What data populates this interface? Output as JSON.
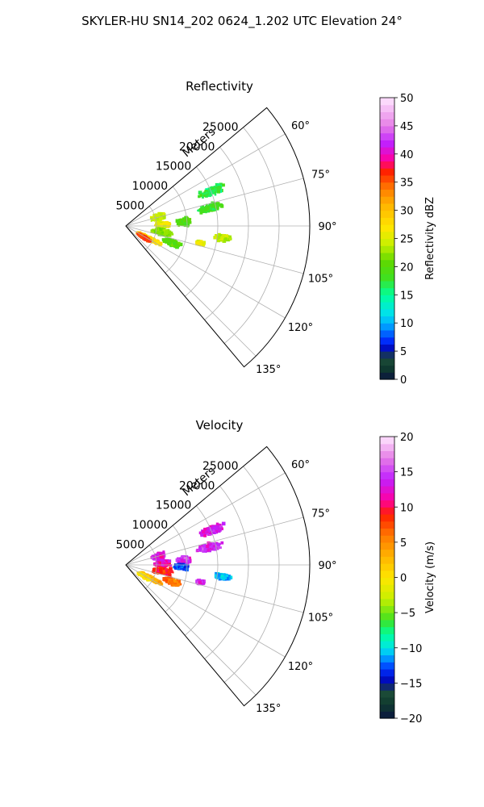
{
  "figure_title": "SKYLER-HU  SN14_202  0624_1.202 UTC Elevation 24°",
  "chart_data": [
    {
      "type": "heatmap",
      "projection": "polar-sector",
      "title": "Reflectivity",
      "range_label": "Meters",
      "range_ticks": [
        5000,
        10000,
        15000,
        20000,
        25000
      ],
      "range_tick_labels": [
        "5000",
        "10000",
        "15000",
        "20000",
        "25000"
      ],
      "range_lim": [
        0,
        30000
      ],
      "azimuth_lim_deg": [
        50,
        140
      ],
      "azimuth_ticks_deg": [
        60,
        75,
        90,
        105,
        120,
        135
      ],
      "azimuth_tick_labels": [
        "60°",
        "75°",
        "90°",
        "105°",
        "120°",
        "135°"
      ],
      "grid": true,
      "colorbar": {
        "label": "Reflectivity dBZ",
        "range": [
          0,
          50
        ],
        "ticks": [
          0,
          5,
          10,
          15,
          20,
          25,
          30,
          35,
          40,
          45,
          50
        ],
        "tick_labels": [
          "0",
          "5",
          "10",
          "15",
          "20",
          "25",
          "30",
          "35",
          "40",
          "45",
          "50"
        ],
        "stops": [
          {
            "v": 0,
            "c": "#0a1440"
          },
          {
            "v": 2,
            "c": "#0f3a2e"
          },
          {
            "v": 4,
            "c": "#1f4f3a"
          },
          {
            "v": 5,
            "c": "#0000a8"
          },
          {
            "v": 7,
            "c": "#0030ff"
          },
          {
            "v": 10,
            "c": "#00b4ff"
          },
          {
            "v": 12,
            "c": "#00e6e6"
          },
          {
            "v": 15,
            "c": "#00ff9a"
          },
          {
            "v": 18,
            "c": "#40e020"
          },
          {
            "v": 21,
            "c": "#60d800"
          },
          {
            "v": 24,
            "c": "#c8f000"
          },
          {
            "v": 27,
            "c": "#ffe600"
          },
          {
            "v": 31,
            "c": "#ffb400"
          },
          {
            "v": 34,
            "c": "#ff7800"
          },
          {
            "v": 37,
            "c": "#ff1e00"
          },
          {
            "v": 39,
            "c": "#ff00a0"
          },
          {
            "v": 42,
            "c": "#c020ff"
          },
          {
            "v": 45,
            "c": "#e67ee6"
          },
          {
            "v": 50,
            "c": "#ffe6ff"
          }
        ]
      },
      "regions": [
        {
          "az": 97,
          "range": 16000,
          "az_span": 2,
          "range_span": 3000,
          "value": 24
        },
        {
          "az": 103,
          "range": 12500,
          "az_span": 1.5,
          "range_span": 1500,
          "value": 25
        },
        {
          "az": 86,
          "range": 9500,
          "az_span": 5,
          "range_span": 2500,
          "value": 20
        },
        {
          "az": 78,
          "range": 14000,
          "az_span": 3,
          "range_span": 5000,
          "value": 18
        },
        {
          "az": 68,
          "range": 15000,
          "az_span": 3,
          "range_span": 5000,
          "value": 17
        },
        {
          "az": 75,
          "range": 5500,
          "az_span": 6,
          "range_span": 3000,
          "value": 24
        },
        {
          "az": 88,
          "range": 6000,
          "az_span": 5,
          "range_span": 3000,
          "value": 26
        },
        {
          "az": 100,
          "range": 6000,
          "az_span": 6,
          "range_span": 4000,
          "value": 22
        },
        {
          "az": 110,
          "range": 8000,
          "az_span": 4,
          "range_span": 3500,
          "value": 20
        },
        {
          "az": 118,
          "range": 4500,
          "az_span": 4,
          "range_span": 5000,
          "value": 28
        },
        {
          "az": 122,
          "range": 3500,
          "az_span": 3,
          "range_span": 3000,
          "value": 36
        }
      ]
    },
    {
      "type": "heatmap",
      "projection": "polar-sector",
      "title": "Velocity",
      "range_label": "Meters",
      "range_ticks": [
        5000,
        10000,
        15000,
        20000,
        25000
      ],
      "range_tick_labels": [
        "5000",
        "10000",
        "15000",
        "20000",
        "25000"
      ],
      "range_lim": [
        0,
        30000
      ],
      "azimuth_lim_deg": [
        50,
        140
      ],
      "azimuth_ticks_deg": [
        60,
        75,
        90,
        105,
        120,
        135
      ],
      "azimuth_tick_labels": [
        "60°",
        "75°",
        "90°",
        "105°",
        "120°",
        "135°"
      ],
      "grid": true,
      "colorbar": {
        "label": "Velocity (m/s)",
        "range": [
          -20,
          20
        ],
        "ticks": [
          -20,
          -15,
          -10,
          -5,
          0,
          5,
          10,
          15,
          20
        ],
        "tick_labels": [
          "−20",
          "−15",
          "−10",
          "−5",
          "0",
          "5",
          "10",
          "15",
          "20"
        ],
        "stops": [
          {
            "v": -20,
            "c": "#0a1440"
          },
          {
            "v": -18,
            "c": "#0f3a2e"
          },
          {
            "v": -16,
            "c": "#1f4f3a"
          },
          {
            "v": -15,
            "c": "#0000a8"
          },
          {
            "v": -13,
            "c": "#0030ff"
          },
          {
            "v": -11,
            "c": "#00b4ff"
          },
          {
            "v": -10,
            "c": "#00e6e6"
          },
          {
            "v": -8,
            "c": "#00ff9a"
          },
          {
            "v": -6,
            "c": "#40e020"
          },
          {
            "v": -3,
            "c": "#c8f000"
          },
          {
            "v": 0,
            "c": "#ffe600"
          },
          {
            "v": 3,
            "c": "#ffb400"
          },
          {
            "v": 6,
            "c": "#ff7800"
          },
          {
            "v": 9,
            "c": "#ff1e00"
          },
          {
            "v": 11,
            "c": "#ff00a0"
          },
          {
            "v": 14,
            "c": "#c020ff"
          },
          {
            "v": 17,
            "c": "#e67ee6"
          },
          {
            "v": 20,
            "c": "#ffe6ff"
          }
        ]
      },
      "regions": [
        {
          "az": 97,
          "range": 16000,
          "az_span": 2,
          "range_span": 3000,
          "value": -11
        },
        {
          "az": 103,
          "range": 12500,
          "az_span": 1.5,
          "range_span": 1500,
          "value": 14
        },
        {
          "az": 86,
          "range": 9500,
          "az_span": 5,
          "range_span": 2500,
          "value": 14
        },
        {
          "az": 78,
          "range": 14000,
          "az_span": 3,
          "range_span": 5000,
          "value": 14
        },
        {
          "az": 68,
          "range": 15000,
          "az_span": 3,
          "range_span": 5000,
          "value": 13
        },
        {
          "az": 75,
          "range": 5500,
          "az_span": 6,
          "range_span": 3000,
          "value": 13
        },
        {
          "az": 88,
          "range": 6000,
          "az_span": 5,
          "range_span": 3000,
          "value": 12
        },
        {
          "az": 92,
          "range": 9000,
          "az_span": 3,
          "range_span": 2500,
          "value": -13
        },
        {
          "az": 100,
          "range": 6000,
          "az_span": 6,
          "range_span": 4000,
          "value": 9
        },
        {
          "az": 110,
          "range": 8000,
          "az_span": 4,
          "range_span": 3500,
          "value": 6
        },
        {
          "az": 118,
          "range": 4500,
          "az_span": 4,
          "range_span": 5000,
          "value": 3
        },
        {
          "az": 122,
          "range": 3500,
          "az_span": 3,
          "range_span": 3000,
          "value": 0
        }
      ]
    }
  ]
}
